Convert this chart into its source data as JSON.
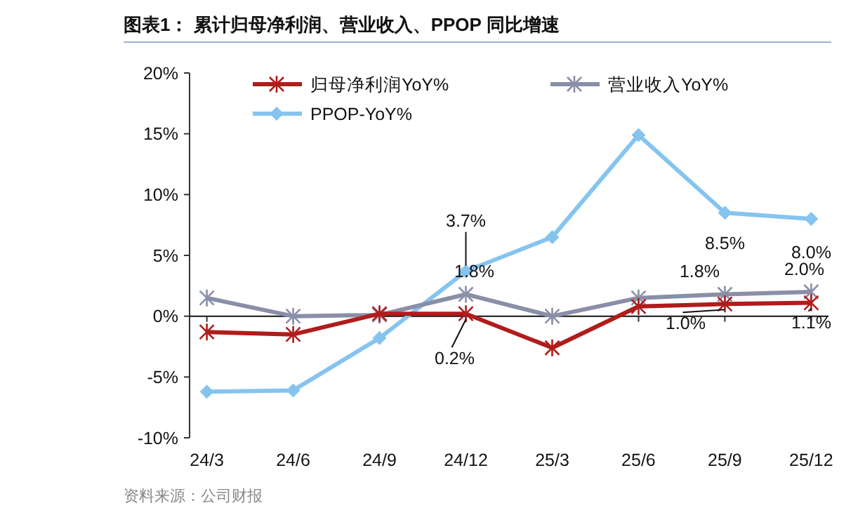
{
  "chart_data": {
    "type": "line",
    "title": "图表1：  累计归母净利润、营业收入、PPOP 同比增速",
    "categories": [
      "24/3",
      "24/6",
      "24/9",
      "24/12",
      "25/3",
      "25/6",
      "25/9",
      "25/12"
    ],
    "series": [
      {
        "name": "归母净利润YoY%",
        "color": "#b01c1c",
        "marker": "cross",
        "values": [
          -1.3,
          -1.5,
          0.2,
          0.2,
          -2.6,
          0.8,
          1.0,
          1.1
        ],
        "value_labels": [
          null,
          null,
          null,
          "0.2%",
          null,
          null,
          "1.0%",
          "1.1%"
        ]
      },
      {
        "name": "营业收入YoY%",
        "color": "#8a8fa8",
        "marker": "cross",
        "values": [
          1.5,
          0.0,
          0.1,
          1.8,
          0.0,
          1.5,
          1.8,
          2.0
        ],
        "value_labels": [
          null,
          null,
          null,
          "1.8%",
          null,
          null,
          "1.8%",
          "2.0%"
        ]
      },
      {
        "name": "PPOP-YoY%",
        "color": "#86c4f0",
        "marker": "diamond",
        "values": [
          -6.2,
          -6.1,
          -1.8,
          3.7,
          6.5,
          14.9,
          8.5,
          8.0
        ],
        "value_labels": [
          null,
          null,
          null,
          "3.7%",
          null,
          null,
          "8.5%",
          "8.0%"
        ]
      }
    ],
    "ylim": [
      -10,
      20
    ],
    "yticks": [
      {
        "value": -10,
        "label": "-10%"
      },
      {
        "value": -5,
        "label": "-5%"
      },
      {
        "value": 0,
        "label": "0%"
      },
      {
        "value": 5,
        "label": "5%"
      },
      {
        "value": 10,
        "label": "10%"
      },
      {
        "value": 15,
        "label": "15%"
      },
      {
        "value": 20,
        "label": "20%"
      }
    ],
    "legend": "top",
    "annotations": [
      "资料来源：公司财报"
    ]
  }
}
